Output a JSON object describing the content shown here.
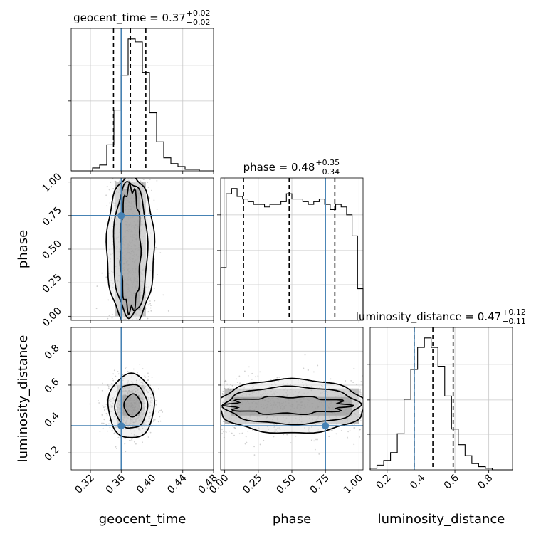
{
  "chart_data": {
    "type": "corner",
    "parameters": [
      "geocent_time",
      "phase",
      "luminosity_distance"
    ],
    "truths": {
      "geocent_time": 0.36,
      "phase": 0.75,
      "luminosity_distance": 0.36
    },
    "truth_color": "#4682b4",
    "panels": {
      "geocent_time": {
        "title": {
          "prefix": "geocent_time = 0.37",
          "plus": "+0.02",
          "minus": "−0.02"
        },
        "range": [
          0.295,
          0.48
        ],
        "ticks": [
          0.32,
          0.36,
          0.4,
          0.44,
          0.48
        ],
        "tick_labels": [
          "0.32",
          "0.36",
          "0.40",
          "0.44",
          "0.48"
        ],
        "quantiles": [
          0.35,
          0.372,
          0.392
        ],
        "hist": [
          0,
          0,
          0,
          2,
          4,
          18,
          42,
          66,
          91,
          89,
          68,
          40,
          20,
          9,
          5,
          3,
          1,
          1,
          0,
          0
        ]
      },
      "phase": {
        "title": {
          "prefix": "phase = 0.48",
          "plus": "+0.35",
          "minus": "−0.34"
        },
        "range": [
          -0.03,
          1.03
        ],
        "ticks": [
          0.0,
          0.25,
          0.5,
          0.75,
          1.0
        ],
        "tick_labels": [
          "0.00",
          "0.25",
          "0.50",
          "0.75",
          "1.00"
        ],
        "quantiles": [
          0.14,
          0.48,
          0.82
        ],
        "hist": [
          20,
          48,
          50,
          47,
          46,
          45,
          44,
          44,
          43,
          44,
          44,
          45,
          48,
          46,
          46,
          45,
          44,
          45,
          46,
          44,
          42,
          44,
          43,
          40,
          32,
          12
        ]
      },
      "luminosity_distance": {
        "title": {
          "prefix": "luminosity_distance = 0.47",
          "plus": "+0.12",
          "minus": "−0.11"
        },
        "range": [
          0.1,
          0.94
        ],
        "ticks": [
          0.2,
          0.4,
          0.6,
          0.8
        ],
        "tick_labels": [
          "0.2",
          "0.4",
          "0.6",
          "0.8"
        ],
        "quantiles": [
          0.36,
          0.47,
          0.59
        ],
        "hist": [
          1,
          3,
          6,
          11,
          23,
          45,
          64,
          78,
          84,
          78,
          66,
          47,
          26,
          16,
          9,
          4,
          2,
          1,
          0,
          0,
          0
        ]
      }
    },
    "axis_ranges_2d": {
      "phase": [
        -0.03,
        1.03
      ],
      "luminosity_distance": [
        0.1,
        0.94
      ]
    },
    "y_ticks": {
      "phase": {
        "values": [
          0.0,
          0.25,
          0.5,
          0.75,
          1.0
        ],
        "labels": [
          "0.00",
          "0.25",
          "0.50",
          "0.75",
          "1.00"
        ]
      },
      "luminosity_distance": {
        "values": [
          0.2,
          0.4,
          0.6,
          0.8
        ],
        "labels": [
          "0.2",
          "0.4",
          "0.6",
          "0.8"
        ]
      }
    },
    "grid": true
  }
}
